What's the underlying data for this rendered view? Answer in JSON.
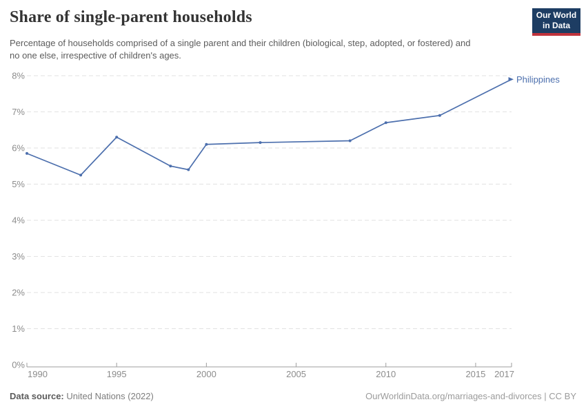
{
  "header": {
    "title": "Share of single-parent households",
    "subtitle": "Percentage of households comprised of a single parent and their children (biological, step, adopted, or fostered) and no one else, irrespective of children's ages.",
    "logo": {
      "line1": "Our World",
      "line2": "in Data"
    }
  },
  "colors": {
    "line": "#4c6fad",
    "entity_label": "#4c6fad",
    "axis_text": "#8c8c8c",
    "gridline": "#e2e2e2",
    "axis_line": "#9e9e9e",
    "logo_bg": "#1d3d63",
    "logo_stripe": "#c0333c"
  },
  "chart_data": {
    "type": "line",
    "title": "Share of single-parent households",
    "x": [
      1990,
      1993,
      1995,
      1998,
      1999,
      2000,
      2003,
      2008,
      2010,
      2013,
      2017
    ],
    "series": [
      {
        "name": "Philippines",
        "values": [
          5.85,
          5.25,
          6.3,
          5.5,
          5.4,
          6.1,
          6.15,
          6.2,
          6.7,
          6.9,
          7.9
        ],
        "color": "#4c6fad"
      }
    ],
    "xlim": [
      1990,
      2017
    ],
    "ylim": [
      0,
      8
    ],
    "xticks": [
      1990,
      1995,
      2000,
      2005,
      2010,
      2015,
      2017
    ],
    "yticks": [
      0,
      1,
      2,
      3,
      4,
      5,
      6,
      7,
      8
    ],
    "ytick_suffix": "%",
    "grid": "horizontal-dashed",
    "legend_position": "line-end-label"
  },
  "footer": {
    "datasource_label": "Data source:",
    "datasource_value": "United Nations (2022)",
    "credit": "OurWorldinData.org/marriages-and-divorces | CC BY"
  }
}
